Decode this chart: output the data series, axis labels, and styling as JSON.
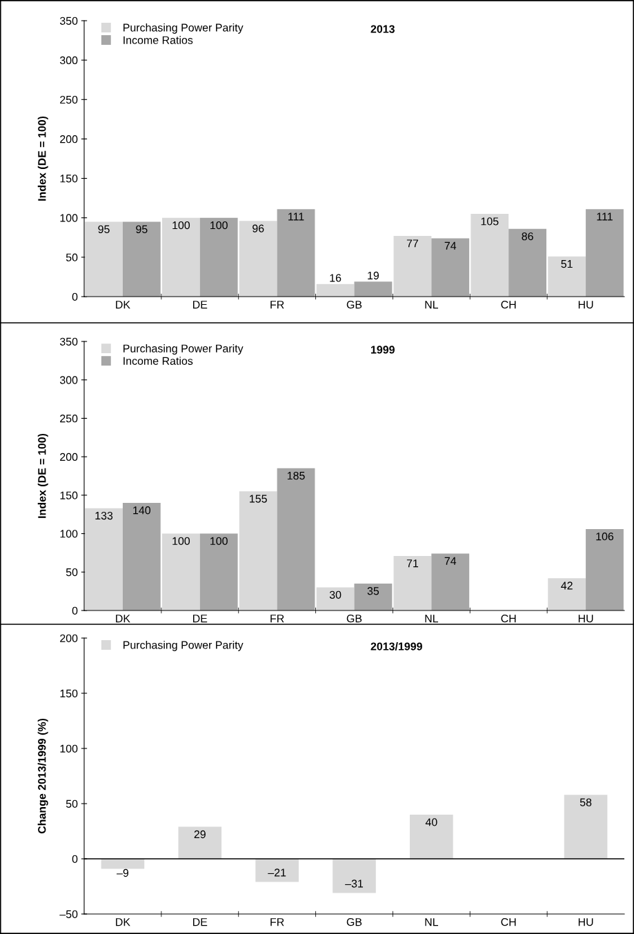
{
  "chart_data": [
    {
      "type": "bar",
      "title": "2013",
      "ylabel": "Index (DE = 100)",
      "categories": [
        "DK",
        "DE",
        "FR",
        "GB",
        "NL",
        "CH",
        "HU"
      ],
      "series": [
        {
          "name": "Purchasing Power Parity",
          "color": "#d9d9d9",
          "values": [
            95,
            100,
            96,
            16,
            77,
            105,
            51
          ]
        },
        {
          "name": "Income Ratios",
          "color": "#a6a6a6",
          "values": [
            95,
            100,
            111,
            19,
            74,
            86,
            111
          ]
        }
      ],
      "ylim": [
        0,
        350
      ],
      "yticks": [
        0,
        50,
        100,
        150,
        200,
        250,
        300,
        350
      ],
      "data_labels": true,
      "legend": "top left"
    },
    {
      "type": "bar",
      "title": "1999",
      "ylabel": "Index (DE = 100)",
      "categories": [
        "DK",
        "DE",
        "FR",
        "GB",
        "NL",
        "CH",
        "HU"
      ],
      "series": [
        {
          "name": "Purchasing Power Parity",
          "color": "#d9d9d9",
          "values": [
            133,
            100,
            155,
            30,
            71,
            null,
            42
          ]
        },
        {
          "name": "Income Ratios",
          "color": "#a6a6a6",
          "values": [
            140,
            100,
            185,
            35,
            74,
            null,
            106
          ]
        }
      ],
      "ylim": [
        0,
        350
      ],
      "yticks": [
        0,
        50,
        100,
        150,
        200,
        250,
        300,
        350
      ],
      "data_labels": true,
      "legend": "top left"
    },
    {
      "type": "bar",
      "title": "2013/1999",
      "ylabel": "Change 2013/1999 (%)",
      "categories": [
        "DK",
        "DE",
        "FR",
        "GB",
        "NL",
        "CH",
        "HU"
      ],
      "series": [
        {
          "name": "Purchasing Power Parity",
          "color": "#d9d9d9",
          "values": [
            -9,
            29,
            -21,
            -31,
            40,
            null,
            58
          ],
          "value_labels": [
            "–9",
            "29",
            "–21",
            "–31",
            "40",
            null,
            "58"
          ]
        }
      ],
      "ylim": [
        -50,
        200
      ],
      "yticks": [
        {
          "value": -50,
          "label": "–50"
        },
        0,
        50,
        100,
        150,
        200
      ],
      "legend": "top left"
    }
  ]
}
